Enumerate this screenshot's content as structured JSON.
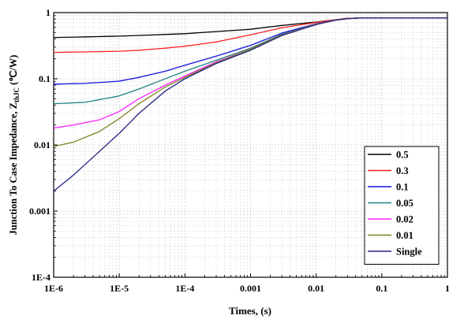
{
  "chart_data": {
    "type": "line",
    "xscale": "log",
    "yscale": "log",
    "xlim": [
      1e-06,
      1
    ],
    "ylim": [
      0.0001,
      1
    ],
    "xlabel": "Times, (s)",
    "ylabel": {
      "main": "Junction To Case Impedance, Z",
      "sub": "thJC",
      "unit": " (℃/W)"
    },
    "xticks": [
      {
        "v": 1e-06,
        "label": "1E-6"
      },
      {
        "v": 1e-05,
        "label": "1E-5"
      },
      {
        "v": 0.0001,
        "label": "1E-4"
      },
      {
        "v": 0.001,
        "label": "0.001"
      },
      {
        "v": 0.01,
        "label": "0.01"
      },
      {
        "v": 0.1,
        "label": "0.1"
      },
      {
        "v": 1,
        "label": "1"
      }
    ],
    "yticks": [
      {
        "v": 0.0001,
        "label": "1E-4"
      },
      {
        "v": 0.001,
        "label": "0.001"
      },
      {
        "v": 0.01,
        "label": "0.01"
      },
      {
        "v": 0.1,
        "label": "0.1"
      },
      {
        "v": 1,
        "label": "1"
      }
    ],
    "grid": true,
    "legend_position": "bottom-right",
    "series": [
      {
        "name": "0.5",
        "color": "#000000",
        "x": [
          1e-06,
          1e-05,
          0.0001,
          0.001,
          0.003,
          0.01,
          0.02,
          0.03,
          0.05,
          0.1,
          0.3,
          1
        ],
        "y": [
          0.42,
          0.44,
          0.48,
          0.56,
          0.64,
          0.72,
          0.78,
          0.82,
          0.83,
          0.83,
          0.83,
          0.83
        ]
      },
      {
        "name": "0.3",
        "color": "#ff2020",
        "x": [
          1e-06,
          1e-05,
          2e-05,
          5e-05,
          0.0001,
          0.0003,
          0.001,
          0.003,
          0.01,
          0.02,
          0.03,
          0.05,
          0.1,
          1
        ],
        "y": [
          0.25,
          0.26,
          0.27,
          0.29,
          0.31,
          0.36,
          0.46,
          0.59,
          0.71,
          0.78,
          0.82,
          0.83,
          0.83,
          0.83
        ]
      },
      {
        "name": "0.1",
        "color": "#1010e0",
        "x": [
          1e-06,
          3e-06,
          1e-05,
          2e-05,
          5e-05,
          0.0001,
          0.0003,
          0.001,
          0.003,
          0.01,
          0.02,
          0.03,
          0.05,
          0.1,
          1
        ],
        "y": [
          0.083,
          0.085,
          0.092,
          0.105,
          0.13,
          0.16,
          0.22,
          0.32,
          0.49,
          0.68,
          0.77,
          0.81,
          0.83,
          0.83,
          0.83
        ]
      },
      {
        "name": "0.05",
        "color": "#208080",
        "x": [
          1e-06,
          3e-06,
          1e-05,
          2e-05,
          5e-05,
          0.0001,
          0.0003,
          0.001,
          0.003,
          0.01,
          0.02,
          0.03,
          0.05,
          0.1,
          1
        ],
        "y": [
          0.042,
          0.044,
          0.055,
          0.07,
          0.1,
          0.13,
          0.19,
          0.29,
          0.47,
          0.67,
          0.77,
          0.81,
          0.83,
          0.83,
          0.83
        ]
      },
      {
        "name": "0.02",
        "color": "#ff20ff",
        "x": [
          1e-06,
          2e-06,
          5e-06,
          1e-05,
          2e-05,
          5e-05,
          0.0001,
          0.0003,
          0.001,
          0.003,
          0.01,
          0.02,
          0.03,
          0.05,
          0.1,
          1
        ],
        "y": [
          0.018,
          0.02,
          0.024,
          0.032,
          0.05,
          0.08,
          0.11,
          0.18,
          0.28,
          0.46,
          0.67,
          0.77,
          0.81,
          0.83,
          0.83,
          0.83
        ]
      },
      {
        "name": "0.01",
        "color": "#808020",
        "x": [
          1e-06,
          2e-06,
          5e-06,
          1e-05,
          2e-05,
          5e-05,
          0.0001,
          0.0003,
          0.001,
          0.003,
          0.01,
          0.02,
          0.03,
          0.05,
          0.1,
          1
        ],
        "y": [
          0.0095,
          0.011,
          0.016,
          0.025,
          0.042,
          0.075,
          0.105,
          0.175,
          0.28,
          0.46,
          0.67,
          0.77,
          0.81,
          0.83,
          0.83,
          0.83
        ]
      },
      {
        "name": "Single",
        "color": "#202080",
        "x": [
          1e-06,
          2e-06,
          5e-06,
          1e-05,
          2e-05,
          5e-05,
          0.0001,
          0.0003,
          0.001,
          0.003,
          0.01,
          0.02,
          0.03,
          0.05,
          0.1,
          1
        ],
        "y": [
          0.002,
          0.0035,
          0.008,
          0.015,
          0.03,
          0.065,
          0.1,
          0.17,
          0.27,
          0.45,
          0.66,
          0.77,
          0.81,
          0.83,
          0.83,
          0.83
        ]
      }
    ]
  }
}
